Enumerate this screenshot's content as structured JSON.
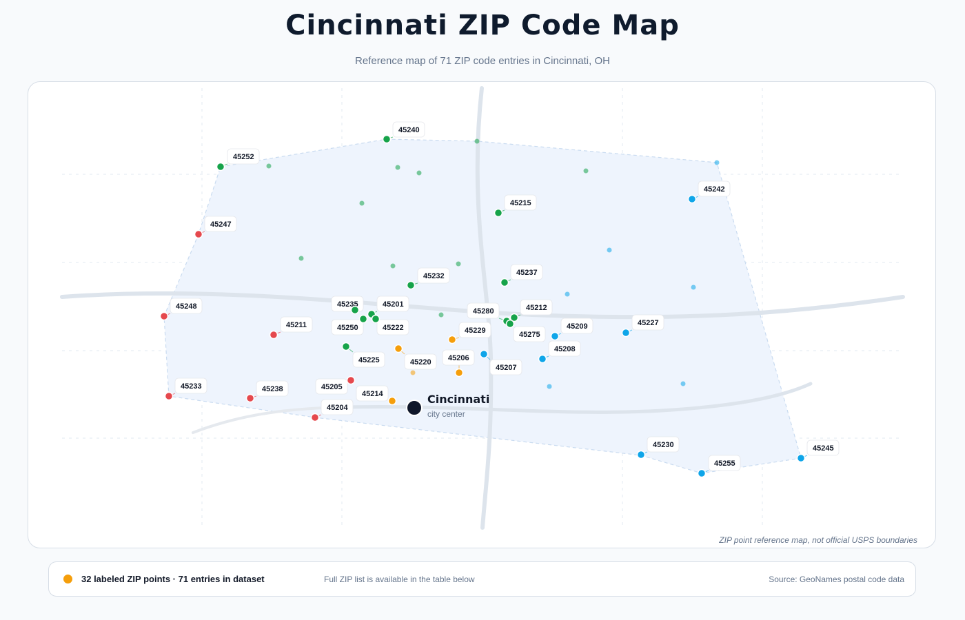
{
  "header": {
    "title": "Cincinnati ZIP Code Map",
    "subtitle": "Reference map of 71 ZIP code entries in Cincinnati, OH"
  },
  "map": {
    "note": "ZIP point reference map, not official USPS boundaries",
    "center": {
      "name": "Cincinnati",
      "caption": "city center"
    },
    "colors": {
      "west": "#e5484d",
      "central": "#f59e0b",
      "north": "#16a34a",
      "east": "#0ea5e9",
      "road": "#dce3ec",
      "area": "#eef4fd"
    },
    "labeled_points": [
      {
        "zip": "45240",
        "group": "north"
      },
      {
        "zip": "45252",
        "group": "north"
      },
      {
        "zip": "45215",
        "group": "north"
      },
      {
        "zip": "45242",
        "group": "east"
      },
      {
        "zip": "45247",
        "group": "west"
      },
      {
        "zip": "45232",
        "group": "north"
      },
      {
        "zip": "45237",
        "group": "north"
      },
      {
        "zip": "45248",
        "group": "west"
      },
      {
        "zip": "45235",
        "group": "north"
      },
      {
        "zip": "45201",
        "group": "north"
      },
      {
        "zip": "45280",
        "group": "north"
      },
      {
        "zip": "45212",
        "group": "north"
      },
      {
        "zip": "45211",
        "group": "west"
      },
      {
        "zip": "45250",
        "group": "north"
      },
      {
        "zip": "45222",
        "group": "north"
      },
      {
        "zip": "45229",
        "group": "central"
      },
      {
        "zip": "45275",
        "group": "north"
      },
      {
        "zip": "45209",
        "group": "east"
      },
      {
        "zip": "45227",
        "group": "east"
      },
      {
        "zip": "45208",
        "group": "east"
      },
      {
        "zip": "45225",
        "group": "north"
      },
      {
        "zip": "45220",
        "group": "central"
      },
      {
        "zip": "45206",
        "group": "central"
      },
      {
        "zip": "45207",
        "group": "east"
      },
      {
        "zip": "45233",
        "group": "west"
      },
      {
        "zip": "45238",
        "group": "west"
      },
      {
        "zip": "45205",
        "group": "west"
      },
      {
        "zip": "45214",
        "group": "central"
      },
      {
        "zip": "45204",
        "group": "west"
      },
      {
        "zip": "45230",
        "group": "east"
      },
      {
        "zip": "45255",
        "group": "east"
      },
      {
        "zip": "45245",
        "group": "east"
      }
    ]
  },
  "legend": {
    "count_text": "32 labeled ZIP points · 71 entries in dataset",
    "note": "Full ZIP list is available in the table below",
    "source": "Source: GeoNames postal code data"
  }
}
